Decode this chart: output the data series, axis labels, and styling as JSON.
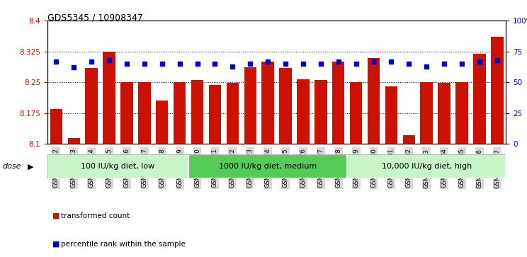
{
  "title": "GDS5345 / 10908347",
  "samples": [
    "GSM1502412",
    "GSM1502413",
    "GSM1502414",
    "GSM1502415",
    "GSM1502416",
    "GSM1502417",
    "GSM1502418",
    "GSM1502419",
    "GSM1502420",
    "GSM1502421",
    "GSM1502422",
    "GSM1502423",
    "GSM1502424",
    "GSM1502425",
    "GSM1502426",
    "GSM1502427",
    "GSM1502428",
    "GSM1502429",
    "GSM1502430",
    "GSM1502431",
    "GSM1502432",
    "GSM1502433",
    "GSM1502434",
    "GSM1502435",
    "GSM1502436",
    "GSM1502437"
  ],
  "bar_values": [
    8.185,
    8.115,
    8.285,
    8.325,
    8.25,
    8.25,
    8.205,
    8.25,
    8.255,
    8.243,
    8.248,
    8.287,
    8.3,
    8.285,
    8.258,
    8.255,
    8.3,
    8.25,
    8.308,
    8.24,
    8.122,
    8.25,
    8.248,
    8.25,
    8.32,
    8.36
  ],
  "percentile_values": [
    67,
    62,
    67,
    68,
    65,
    65,
    65,
    65,
    65,
    65,
    63,
    65,
    67,
    65,
    65,
    65,
    67,
    65,
    67,
    67,
    65,
    63,
    65,
    65,
    67,
    68
  ],
  "bar_color": "#cc1100",
  "dot_color": "#0000cc",
  "ylim_left": [
    8.1,
    8.4
  ],
  "ylim_right": [
    0,
    100
  ],
  "yticks_left": [
    8.1,
    8.175,
    8.25,
    8.325,
    8.4
  ],
  "ytick_labels_left": [
    "8.1",
    "8.175",
    "8.25",
    "8.325",
    "8.4"
  ],
  "yticks_right": [
    0,
    25,
    50,
    75,
    100
  ],
  "ytick_labels_right": [
    "0",
    "25",
    "50",
    "75",
    "100%"
  ],
  "grid_values": [
    8.175,
    8.25,
    8.325
  ],
  "groups": [
    {
      "label": "100 IU/kg diet, low",
      "start": 0,
      "end": 8
    },
    {
      "label": "1000 IU/kg diet, medium",
      "start": 8,
      "end": 17
    },
    {
      "label": "10,000 IU/kg diet, high",
      "start": 17,
      "end": 26
    }
  ],
  "group_colors": [
    "#c8f0c8",
    "#5cd65c",
    "#c8f0c8"
  ],
  "dose_label": "dose",
  "legend_items": [
    {
      "color": "#cc1100",
      "label": "transformed count"
    },
    {
      "color": "#0000cc",
      "label": "percentile rank within the sample"
    }
  ],
  "xtick_bg": "#d8d8d8",
  "plot_bg": "#ffffff"
}
